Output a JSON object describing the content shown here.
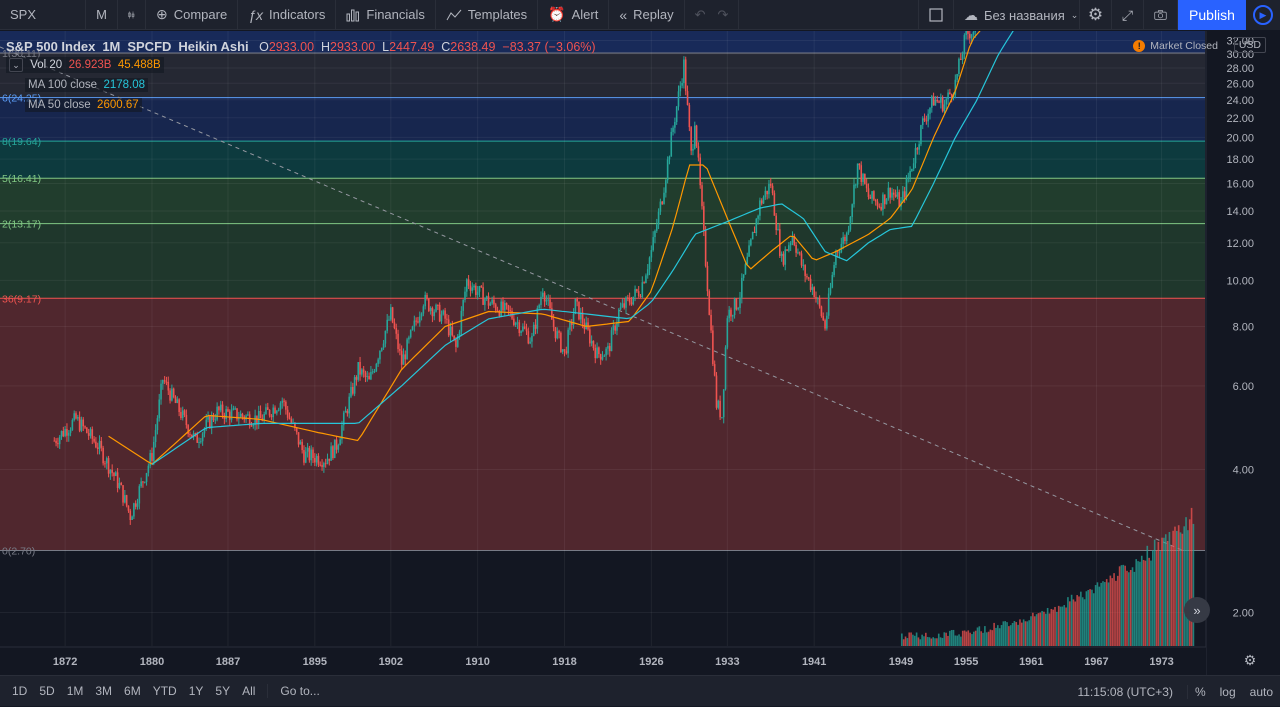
{
  "topbar": {
    "symbol": "SPX",
    "interval": "M",
    "compare": "Compare",
    "indicators": "Indicators",
    "financials": "Financials",
    "templates": "Templates",
    "alert": "Alert",
    "replay": "Replay",
    "layout_name": "Без названия",
    "publish": "Publish"
  },
  "legend": {
    "title": "S&P 500 Index",
    "interval": "1M",
    "source": "SPCFD",
    "chart_style": "Heikin Ashi",
    "o_label": "O",
    "o": "2933.00",
    "h_label": "H",
    "h": "2933.00",
    "l_label": "L",
    "l": "2447.49",
    "c_label": "C",
    "c": "2638.49",
    "change": "−83.37 (−3.06%)",
    "vol_label": "Vol 20",
    "vol_a": "26.923B",
    "vol_b": "45.488B",
    "ma100_label": "MA 100 close",
    "ma100_value": "2178.08",
    "ma50_label": "MA 50 close",
    "ma50_value": "2600.67",
    "collapse_icon": "chevron-down-icon"
  },
  "market_status": "Market Closed",
  "currency": "USD",
  "colors": {
    "background": "#131722",
    "up": "#26a69a",
    "down": "#ef5350",
    "ma100": "#26c6da",
    "ma50": "#ff9800",
    "accent": "#2962ff"
  },
  "fib_labels": [
    "1(30.11)",
    "6(24.25)",
    "8(19.64)",
    "5(16.41)",
    "2(13.17)",
    "36(9.17)",
    "0(2.70)"
  ],
  "chart_data": {
    "type": "line",
    "title": "S&P 500 Index",
    "xlabel": "",
    "ylabel": "",
    "x_ticks": [
      "1872",
      "1880",
      "1887",
      "1895",
      "1902",
      "1910",
      "1918",
      "1926",
      "1933",
      "1941",
      "1949",
      "1955",
      "1961",
      "1967",
      "1973"
    ],
    "y_ticks": [
      "2.00",
      "4.00",
      "6.00",
      "8.00",
      "10.00",
      "12.00",
      "14.00",
      "16.00",
      "18.00",
      "20.00",
      "22.00",
      "24.00",
      "26.00",
      "28.00",
      "30.00",
      "32.00"
    ],
    "ylim": [
      1.7,
      33.5
    ],
    "xlim": [
      1866,
      1977
    ],
    "scale": "log",
    "grid": true,
    "fib_levels": [
      2.7,
      9.17,
      13.17,
      16.41,
      19.64,
      24.25,
      30.11
    ],
    "series": [
      {
        "name": "SPX",
        "x": [
          1871,
          1873,
          1875,
          1877,
          1878,
          1880,
          1881,
          1882,
          1884,
          1886,
          1888,
          1890,
          1892,
          1894,
          1896,
          1897,
          1899,
          1900,
          1902,
          1903,
          1905,
          1907,
          1908,
          1909,
          1911,
          1913,
          1915,
          1916,
          1917,
          1918,
          1919,
          1921,
          1922,
          1923,
          1925,
          1926,
          1927,
          1928,
          1929,
          1929.7,
          1930,
          1931,
          1932,
          1932.5,
          1933,
          1934,
          1936,
          1937,
          1938,
          1939,
          1940,
          1941,
          1942,
          1943,
          1944,
          1945,
          1946,
          1947,
          1948,
          1949,
          1950,
          1951,
          1952,
          1953,
          1954,
          1955,
          1956
        ],
        "values": [
          4.6,
          5.1,
          4.5,
          3.7,
          3.2,
          4.3,
          6.2,
          5.6,
          4.6,
          5.3,
          5.2,
          5.1,
          5.6,
          4.3,
          4.2,
          4.5,
          6.5,
          6.1,
          8.5,
          6.7,
          9.1,
          8.3,
          7.2,
          10.0,
          9.0,
          8.5,
          7.5,
          9.7,
          8.0,
          7.0,
          8.9,
          7.0,
          7.1,
          8.6,
          9.6,
          11.5,
          15.0,
          21.0,
          28.5,
          18.0,
          22.0,
          11.0,
          5.5,
          5.2,
          8.5,
          9.0,
          14.5,
          16.0,
          11.0,
          12.5,
          10.5,
          9.5,
          8.0,
          11.5,
          12.5,
          17.5,
          15.0,
          14.5,
          15.5,
          14.5,
          17.5,
          21.5,
          24.0,
          23.5,
          26.0,
          33.0,
          34.0
        ]
      },
      {
        "name": "MA 50 close",
        "x": [
          1876,
          1880,
          1885,
          1890,
          1895,
          1899,
          1903,
          1907,
          1911,
          1916,
          1920,
          1924,
          1926,
          1928,
          1929.5,
          1931,
          1933,
          1935,
          1937,
          1939,
          1941,
          1943,
          1946,
          1948,
          1950,
          1952,
          1954,
          1955.5,
          1956.5
        ],
        "values": [
          4.7,
          4.1,
          5.2,
          5.1,
          4.8,
          4.6,
          6.5,
          8.0,
          8.6,
          8.5,
          8.0,
          8.2,
          9.5,
          13.0,
          17.5,
          17.5,
          13.5,
          10.5,
          11.5,
          12.5,
          11.0,
          11.5,
          12.5,
          13.5,
          15.5,
          20.0,
          25.0,
          32.0,
          34.0
        ]
      },
      {
        "name": "MA 100 close",
        "x": [
          1880,
          1885,
          1890,
          1895,
          1899,
          1903,
          1907,
          1911,
          1916,
          1920,
          1924,
          1926,
          1928,
          1930,
          1933,
          1936,
          1938,
          1940,
          1942,
          1944,
          1946,
          1948,
          1950,
          1952,
          1954,
          1956,
          1958,
          1959.5
        ],
        "values": [
          4.1,
          4.9,
          5.0,
          5.0,
          5.0,
          6.0,
          7.3,
          8.3,
          8.7,
          8.5,
          8.3,
          9.0,
          10.5,
          12.5,
          13.3,
          14.2,
          14.5,
          13.5,
          11.5,
          11.0,
          12.0,
          12.8,
          13.0,
          16.0,
          20.0,
          24.0,
          30.0,
          34.0
        ]
      }
    ]
  },
  "bottombar": {
    "ranges": [
      "1D",
      "5D",
      "1M",
      "3M",
      "6M",
      "YTD",
      "1Y",
      "5Y",
      "All"
    ],
    "goto": "Go to...",
    "time": "11:15:08 (UTC+3)",
    "percent": "%",
    "log": "log",
    "auto": "auto"
  }
}
